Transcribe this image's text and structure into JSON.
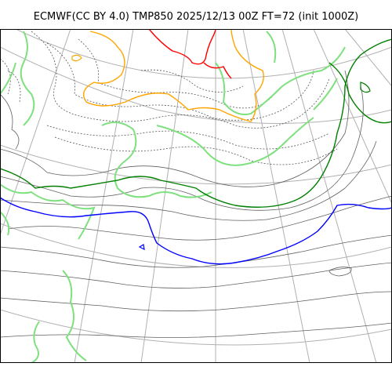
{
  "title": "ECMWF(CC BY 4.0) TMP850 2025/12/13 00Z FT=72 (init 1000Z)",
  "map": {
    "projection": "polar-stereographic",
    "variable": "TMP850",
    "colors": {
      "coast": "#7fe07f",
      "warm_isotherm": "#ffa500",
      "hot_isotherm": "#ff0000",
      "cold_isotherm": "#0000ff",
      "green_isotherm": "#007f00",
      "contour": "#606060",
      "graticule": "#b0b0b0"
    }
  }
}
